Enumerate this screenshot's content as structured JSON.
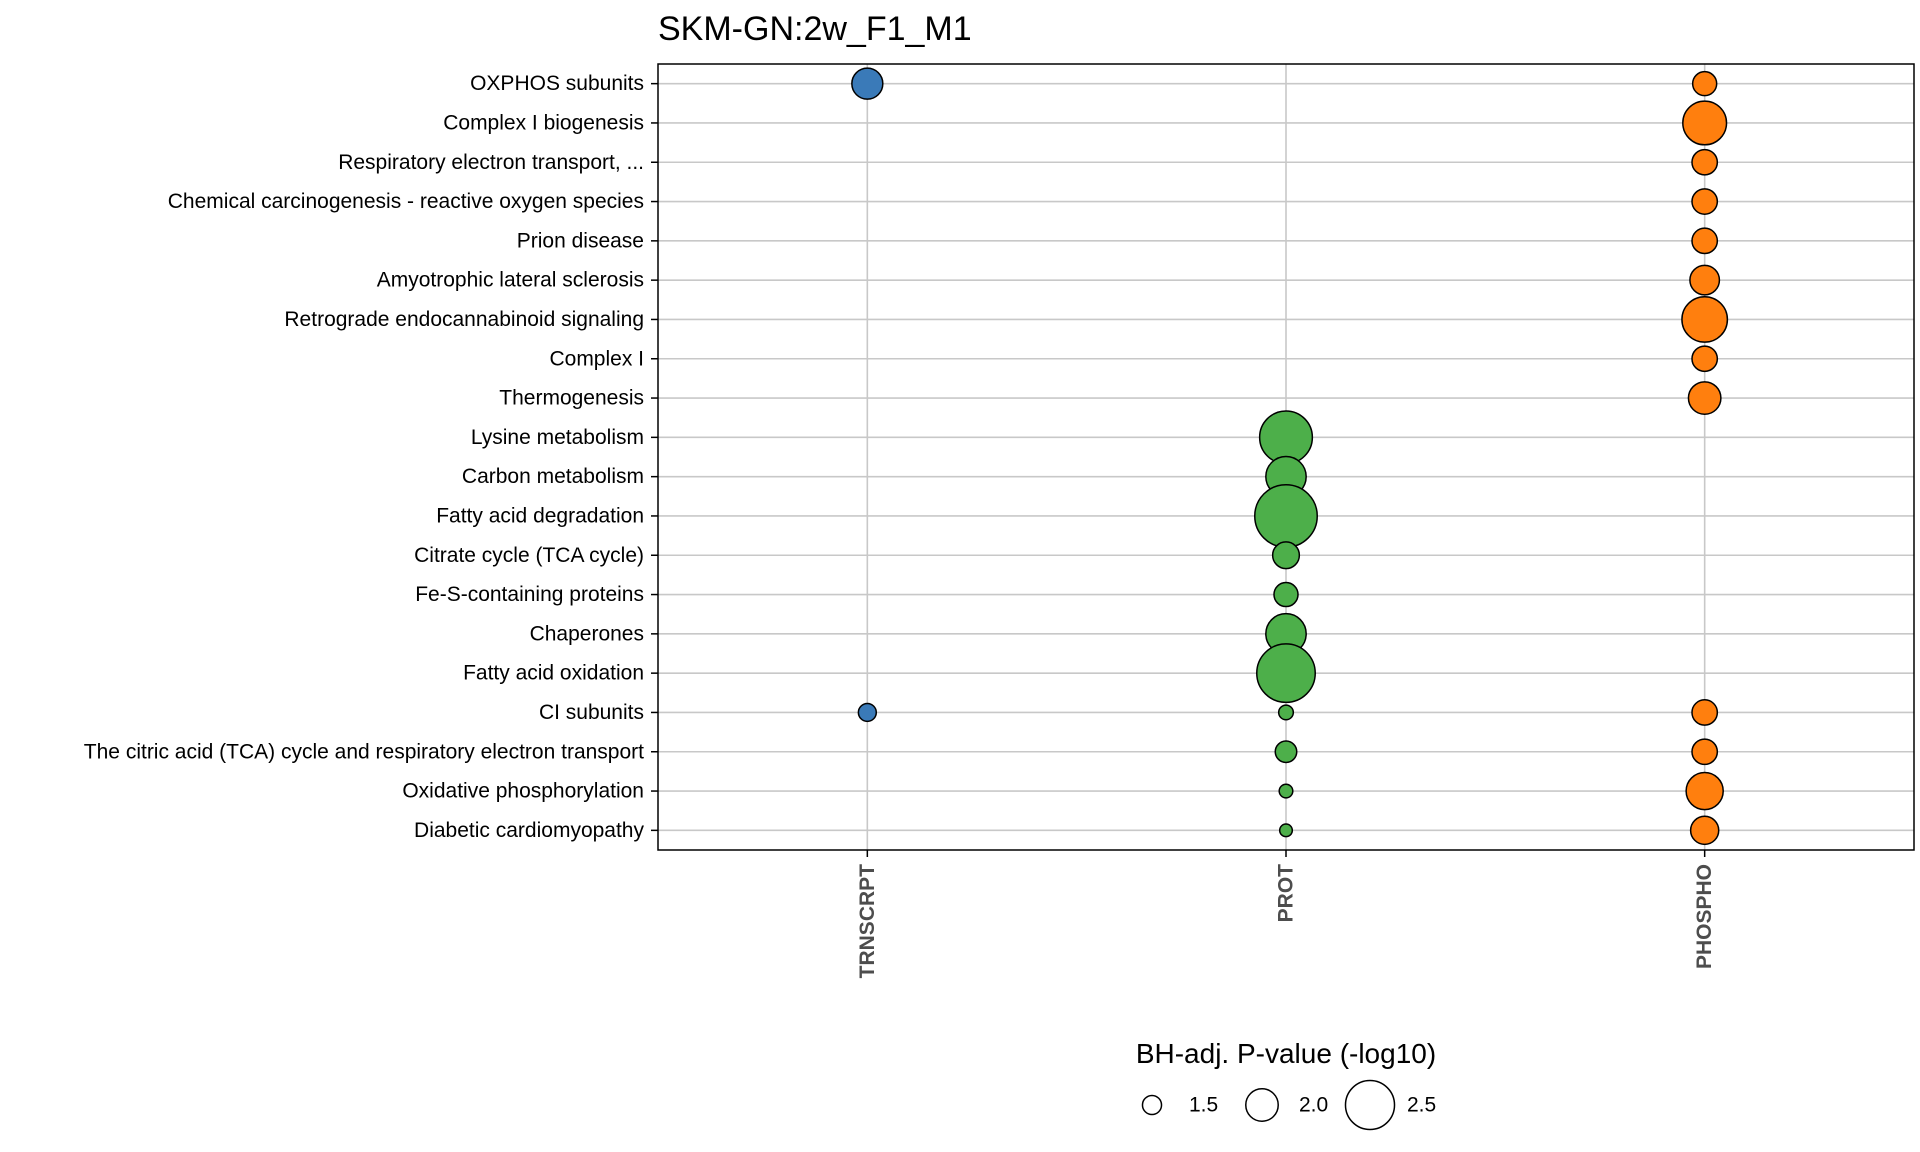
{
  "chart_data": {
    "type": "scatter",
    "title": "SKM-GN:2w_F1_M1",
    "xlabel": "",
    "ylabel": "",
    "categories_x": [
      "TRNSCRPT",
      "PROT",
      "PHOSPHO"
    ],
    "categories_y": [
      "OXPHOS subunits",
      "Complex I biogenesis",
      "Respiratory electron transport, ...",
      "Chemical carcinogenesis - reactive oxygen species",
      "Prion disease",
      "Amyotrophic lateral sclerosis",
      "Retrograde endocannabinoid signaling",
      "Complex I",
      "Thermogenesis",
      "Lysine metabolism",
      "Carbon metabolism",
      "Fatty acid degradation",
      "Citrate cycle (TCA cycle)",
      "Fe-S-containing proteins",
      "Chaperones",
      "Fatty acid oxidation",
      "CI subunits",
      "The citric acid (TCA) cycle and respiratory electron transport",
      "Oxidative phosphorylation",
      "Diabetic cardiomyopathy"
    ],
    "colors": {
      "TRNSCRPT": "#3a7ab8",
      "PROT": "#4daf4a",
      "PHOSPHO": "#ff7f0e"
    },
    "series": [
      {
        "name": "TRNSCRPT",
        "points": [
          {
            "y": "OXPHOS subunits",
            "size": 1.95
          },
          {
            "y": "CI subunits",
            "size": 1.45
          }
        ]
      },
      {
        "name": "PROT",
        "points": [
          {
            "y": "Lysine metabolism",
            "size": 2.6
          },
          {
            "y": "Carbon metabolism",
            "size": 2.25
          },
          {
            "y": "Fatty acid degradation",
            "size": 2.85
          },
          {
            "y": "Citrate cycle (TCA cycle)",
            "size": 1.8
          },
          {
            "y": "Fe-S-containing proteins",
            "size": 1.7
          },
          {
            "y": "Chaperones",
            "size": 2.25
          },
          {
            "y": "Fatty acid oxidation",
            "size": 2.75
          },
          {
            "y": "CI subunits",
            "size": 1.3
          },
          {
            "y": "The citric acid (TCA) cycle and respiratory electron transport",
            "size": 1.6
          },
          {
            "y": "Oxidative phosphorylation",
            "size": 1.25
          },
          {
            "y": "Diabetic cardiomyopathy",
            "size": 1.2
          }
        ]
      },
      {
        "name": "PHOSPHO",
        "points": [
          {
            "y": "OXPHOS subunits",
            "size": 1.7
          },
          {
            "y": "Complex I biogenesis",
            "size": 2.35
          },
          {
            "y": "Respiratory electron transport, ...",
            "size": 1.75
          },
          {
            "y": "Chemical carcinogenesis - reactive oxygen species",
            "size": 1.75
          },
          {
            "y": "Prion disease",
            "size": 1.75
          },
          {
            "y": "Amyotrophic lateral sclerosis",
            "size": 1.9
          },
          {
            "y": "Retrograde endocannabinoid signaling",
            "size": 2.4
          },
          {
            "y": "Complex I",
            "size": 1.75
          },
          {
            "y": "Thermogenesis",
            "size": 2.0
          },
          {
            "y": "CI subunits",
            "size": 1.75
          },
          {
            "y": "The citric acid (TCA) cycle and respiratory electron transport",
            "size": 1.75
          },
          {
            "y": "Oxidative phosphorylation",
            "size": 2.15
          },
          {
            "y": "Diabetic cardiomyopathy",
            "size": 1.85
          }
        ]
      }
    ],
    "size_legend": {
      "title": "BH-adj. P-value (-log10)",
      "values": [
        1.5,
        2.0,
        2.5
      ],
      "labels": [
        "1.5",
        "2.0",
        "2.5"
      ]
    },
    "grid": true,
    "legend_position": "bottom"
  }
}
